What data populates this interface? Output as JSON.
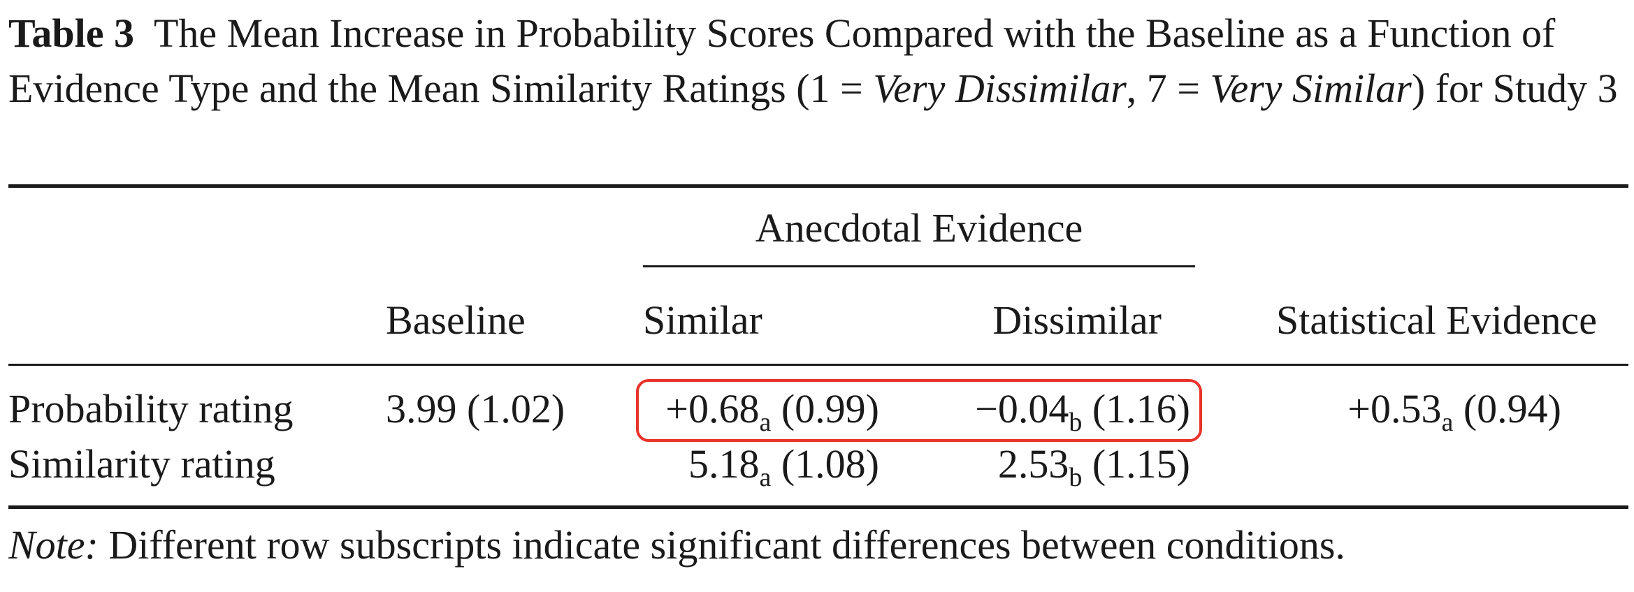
{
  "caption": {
    "label": "Table 3",
    "text_before": "The Mean Increase in Probability Scores Compared with the Baseline as a Function of Evidence Type and the Mean Similarity Ratings (1 = ",
    "italic_1": "Very Dissimilar",
    "text_middle": ", 7 = ",
    "italic_2": "Very Similar",
    "text_after": ") for Study 3"
  },
  "table": {
    "spanner": "Anecdotal Evidence",
    "columns": {
      "baseline": "Baseline",
      "similar": "Similar",
      "dissimilar": "Dissimilar",
      "statistical": "Statistical Evidence"
    },
    "rows": [
      {
        "label": "Probability rating",
        "baseline": "3.99 (1.02)",
        "similar": {
          "value": "+0.68",
          "sub": "a",
          "sd": " (0.99)"
        },
        "dissimilar": {
          "value": "−0.04",
          "sub": "b",
          "sd": " (1.16)"
        },
        "statistical": {
          "value": "+0.53",
          "sub": "a",
          "sd": " (0.94)"
        }
      },
      {
        "label": "Similarity rating",
        "similar": {
          "value": "5.18",
          "sub": "a",
          "sd": " (1.08)"
        },
        "dissimilar": {
          "value": "2.53",
          "sub": "b",
          "sd": " (1.15)"
        }
      }
    ]
  },
  "note": {
    "label": "Note:",
    "text": " Different row subscripts indicate significant differences between conditions."
  },
  "colors": {
    "highlight": "#e8332a",
    "text": "#1a1a1a"
  }
}
